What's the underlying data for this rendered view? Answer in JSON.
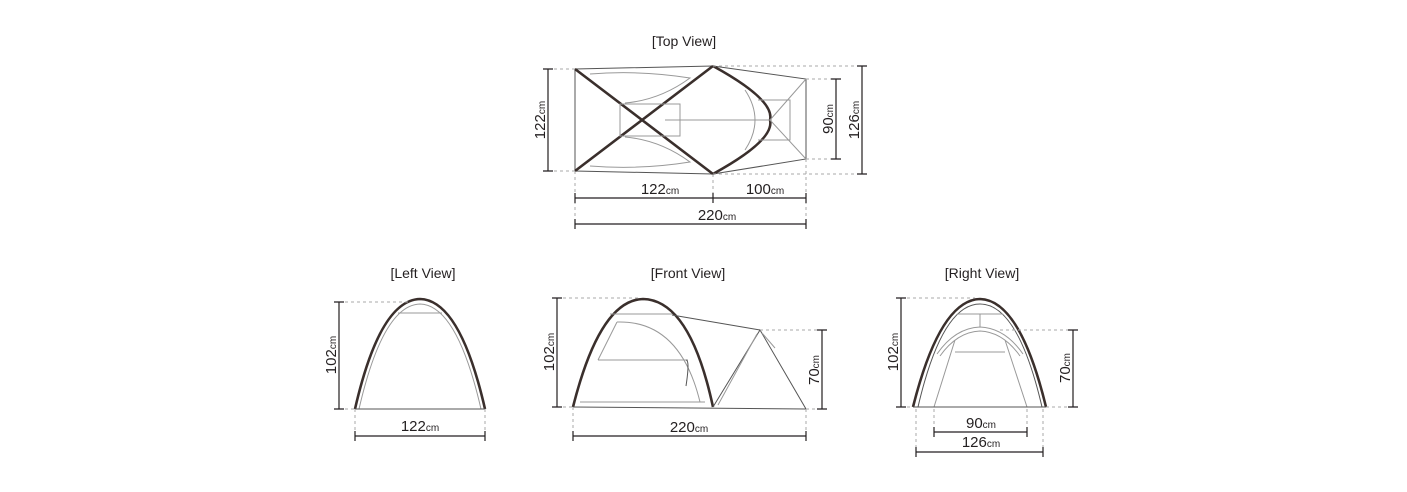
{
  "views": {
    "top": {
      "title": "[Top View]",
      "width_left": "122",
      "length_inner": "122",
      "length_vestibule": "100",
      "length_total": "220",
      "width_vestibule": "90",
      "width_total": "126"
    },
    "left": {
      "title": "[Left View]",
      "height": "102",
      "width": "122"
    },
    "front": {
      "title": "[Front View]",
      "height": "102",
      "vestibule_height": "70",
      "length": "220"
    },
    "right": {
      "title": "[Right View]",
      "height": "102",
      "inner_height": "70",
      "inner_width": "90",
      "width": "126"
    }
  },
  "unit": "cm",
  "colors": {
    "line": "#231f20",
    "dashed": "#aaaaaa"
  }
}
